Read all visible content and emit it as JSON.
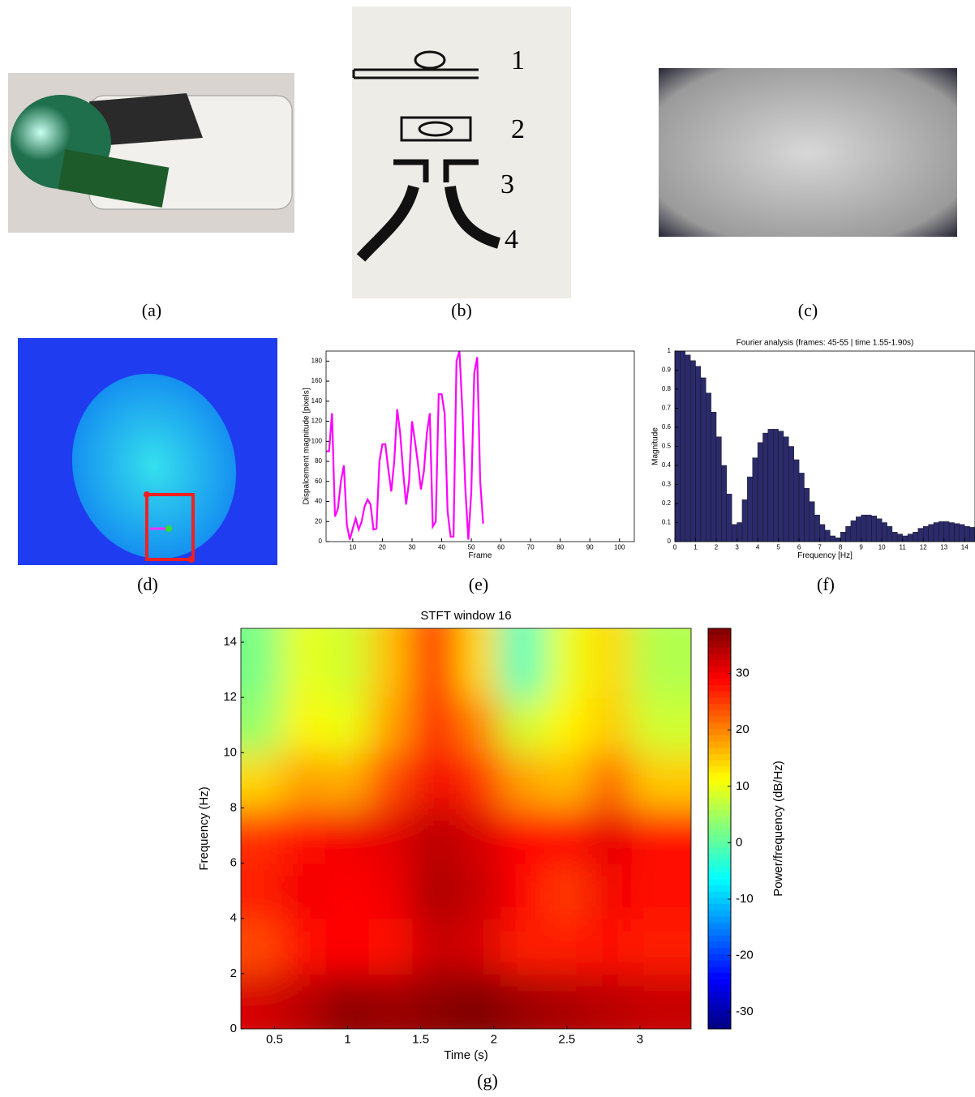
{
  "panels": [
    "(a)",
    "(b)",
    "(c)",
    "(d)",
    "(e)",
    "(f)",
    "(g)"
  ],
  "sketch_labels": [
    "1",
    "2",
    "3",
    "4"
  ],
  "chart_data": [
    {
      "type": "line",
      "xlabel": "Frame",
      "ylabel": "Dispalcement magnitude [pixels]",
      "color": "#ff00ff",
      "x": [
        1,
        2,
        3,
        4,
        5,
        6,
        7,
        8,
        9,
        10,
        11,
        12,
        13,
        14,
        15,
        16,
        17,
        18,
        19,
        20,
        21,
        22,
        23,
        24,
        25,
        26,
        27,
        28,
        29,
        30,
        31,
        32,
        33,
        34,
        35,
        36,
        37,
        38,
        39,
        40,
        41,
        42,
        43,
        44,
        45,
        46,
        47,
        48,
        49,
        50,
        51,
        52,
        53,
        54
      ],
      "values": [
        90,
        90,
        128,
        25,
        33,
        60,
        76,
        17,
        2,
        13,
        23,
        12,
        20,
        35,
        42,
        37,
        12,
        13,
        80,
        97,
        97,
        72,
        50,
        80,
        132,
        108,
        70,
        37,
        60,
        120,
        100,
        78,
        52,
        70,
        108,
        128,
        15,
        20,
        147,
        147,
        128,
        30,
        5,
        5,
        180,
        190,
        130,
        52,
        2,
        50,
        168,
        184,
        60,
        18
      ],
      "xlim": [
        1,
        105
      ],
      "xticks": [
        10,
        20,
        30,
        40,
        50,
        60,
        70,
        80,
        90,
        100
      ],
      "ylim": [
        0,
        190
      ],
      "yticks": [
        0,
        20,
        40,
        60,
        80,
        100,
        120,
        140,
        160,
        180
      ]
    },
    {
      "type": "bar",
      "title": "Fourier analysis (frames: 45-55 | time 1.55-1.90s)",
      "xlabel": "Frequency [Hz]",
      "ylabel": "Magnitude",
      "color": "#2b2a6b",
      "x": [
        0,
        0.25,
        0.5,
        0.75,
        1,
        1.25,
        1.5,
        1.75,
        2,
        2.25,
        2.5,
        2.75,
        3,
        3.25,
        3.5,
        3.75,
        4,
        4.25,
        4.5,
        4.75,
        5,
        5.25,
        5.5,
        5.75,
        6,
        6.25,
        6.5,
        6.75,
        7,
        7.25,
        7.5,
        7.75,
        8,
        8.25,
        8.5,
        8.75,
        9,
        9.25,
        9.5,
        9.75,
        10,
        10.25,
        10.5,
        10.75,
        11,
        11.25,
        11.5,
        11.75,
        12,
        12.25,
        12.5,
        12.75,
        13,
        13.25,
        13.5,
        13.75,
        14,
        14.25
      ],
      "values": [
        1.0,
        1.0,
        0.98,
        0.95,
        0.92,
        0.86,
        0.78,
        0.68,
        0.55,
        0.4,
        0.25,
        0.09,
        0.1,
        0.22,
        0.34,
        0.44,
        0.52,
        0.57,
        0.59,
        0.59,
        0.58,
        0.55,
        0.5,
        0.43,
        0.36,
        0.28,
        0.21,
        0.14,
        0.09,
        0.06,
        0.03,
        0.02,
        0.05,
        0.08,
        0.11,
        0.13,
        0.14,
        0.14,
        0.135,
        0.12,
        0.1,
        0.08,
        0.05,
        0.04,
        0.03,
        0.04,
        0.05,
        0.07,
        0.08,
        0.09,
        0.1,
        0.105,
        0.105,
        0.1,
        0.095,
        0.09,
        0.08,
        0.075
      ],
      "bar_width": 0.25,
      "xlim": [
        0,
        14.5
      ],
      "xticks": [
        0,
        1,
        2,
        3,
        4,
        5,
        6,
        7,
        8,
        9,
        10,
        11,
        12,
        13,
        14
      ],
      "ylim": [
        0,
        1
      ],
      "yticks": [
        0,
        0.1,
        0.2,
        0.3,
        0.4,
        0.5,
        0.6,
        0.7,
        0.8,
        0.9,
        1
      ]
    },
    {
      "type": "heatmap",
      "title": "STFT window 16",
      "xlabel": "Time (s)",
      "ylabel": "Frequency (Hz)",
      "colorbar_label": "Power/frequency (dB/Hz)",
      "colormap": "jet",
      "x": [
        0.4,
        0.7,
        1.0,
        1.3,
        1.6,
        1.9,
        2.2,
        2.5,
        2.8,
        3.1
      ],
      "y": [
        1,
        3,
        5,
        7,
        9,
        11,
        13
      ],
      "values": [
        [
          32,
          34,
          37,
          36,
          37,
          38,
          36,
          35,
          34,
          33
        ],
        [
          24,
          28,
          29,
          28,
          33,
          32,
          27,
          27,
          28,
          27
        ],
        [
          27,
          30,
          29,
          30,
          35,
          33,
          29,
          25,
          30,
          28
        ],
        [
          26,
          28,
          30,
          31,
          34,
          32,
          29,
          29,
          31,
          28
        ],
        [
          14,
          18,
          17,
          24,
          30,
          26,
          18,
          16,
          22,
          15
        ],
        [
          4,
          12,
          10,
          18,
          27,
          20,
          8,
          12,
          15,
          8
        ],
        [
          2,
          10,
          8,
          16,
          28,
          14,
          -2,
          10,
          14,
          6
        ]
      ],
      "xlim": [
        0.27,
        3.35
      ],
      "xticks": [
        0.5,
        1,
        1.5,
        2,
        2.5,
        3
      ],
      "ylim": [
        0,
        14.5
      ],
      "yticks": [
        0,
        2,
        4,
        6,
        8,
        10,
        12,
        14
      ],
      "clim": [
        -33,
        38
      ],
      "cticks": [
        -30,
        -20,
        -10,
        0,
        10,
        20,
        30
      ]
    }
  ]
}
